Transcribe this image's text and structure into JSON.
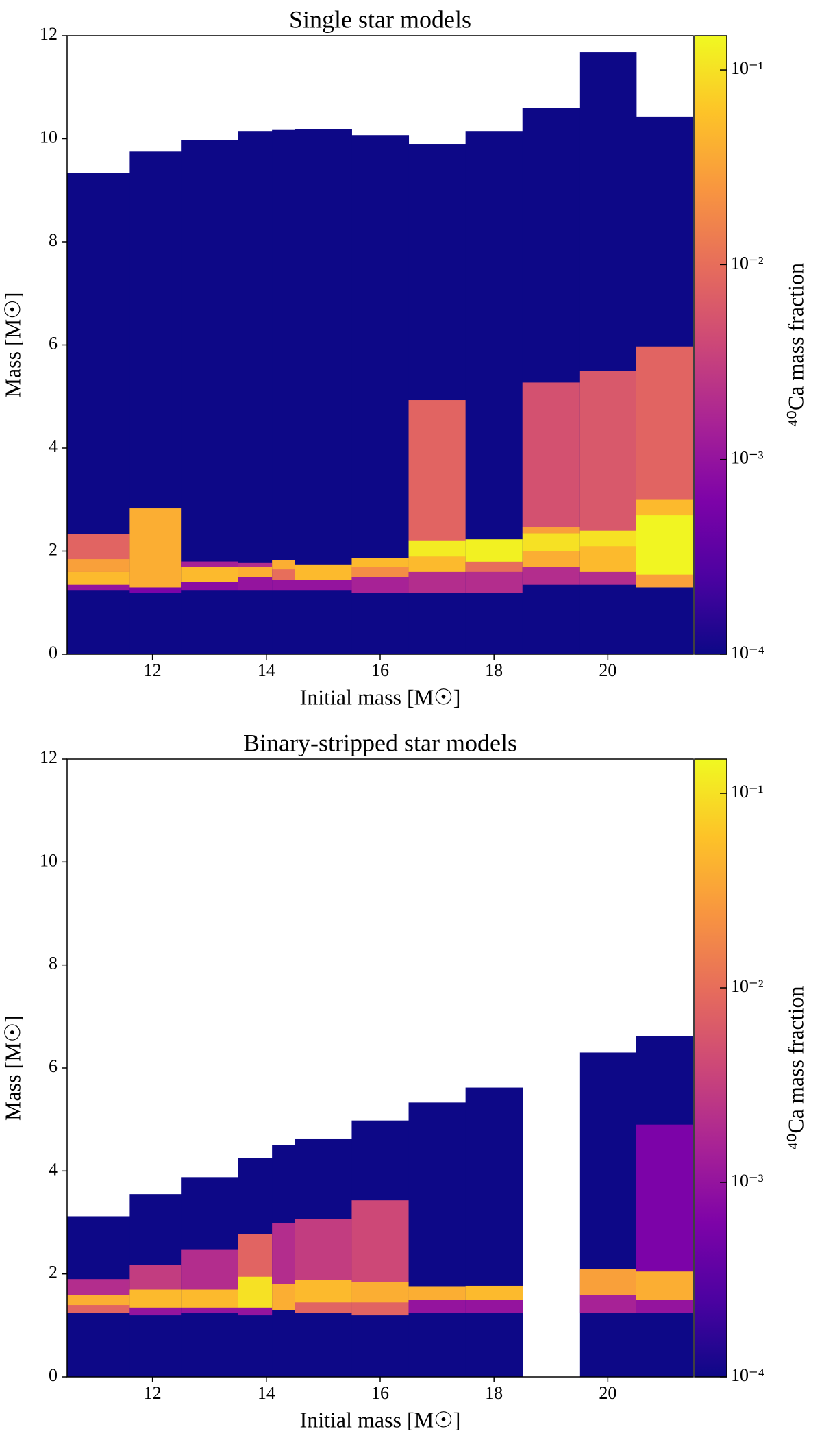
{
  "chart_data": [
    {
      "type": "heatmap",
      "title": "Single star models",
      "xlabel": "Initial mass [M☉]",
      "ylabel": "Mass [M☉]",
      "xlim": [
        10.5,
        21.5
      ],
      "xticks": [
        12,
        14,
        16,
        18,
        20
      ],
      "ylim": [
        0,
        12
      ],
      "yticks": [
        0,
        2,
        4,
        6,
        8,
        10,
        12
      ],
      "colormap": [
        "#0d0887",
        "#4c02a1",
        "#7e03a8",
        "#a92395",
        "#cc4778",
        "#e66c5c",
        "#f89540",
        "#fdc328",
        "#f0f921"
      ],
      "colorbar": {
        "label": "⁴⁰Ca mass fraction",
        "scale": "log",
        "lim": [
          0.0001,
          0.15
        ],
        "ticks": [
          {
            "value": 0.0001,
            "label": "10⁻⁴"
          },
          {
            "value": 0.001,
            "label": "10⁻³"
          },
          {
            "value": 0.01,
            "label": "10⁻²"
          },
          {
            "value": 0.1,
            "label": "10⁻¹"
          }
        ]
      },
      "columns": [
        {
          "edges": [
            10.5,
            11.6
          ],
          "top": 9.33,
          "layers": [
            [
              1.25,
              1.35,
              0.001
            ],
            [
              1.35,
              1.6,
              0.05
            ],
            [
              1.6,
              1.85,
              0.03
            ],
            [
              1.85,
              2.33,
              0.008
            ]
          ]
        },
        {
          "edges": [
            11.6,
            12.5
          ],
          "top": 9.75,
          "layers": [
            [
              1.2,
              1.3,
              0.0006
            ],
            [
              1.3,
              2.83,
              0.04
            ]
          ]
        },
        {
          "edges": [
            12.5,
            13.5
          ],
          "top": 9.98,
          "layers": [
            [
              1.25,
              1.4,
              0.0008
            ],
            [
              1.4,
              1.7,
              0.05
            ],
            [
              1.7,
              1.8,
              0.0015
            ]
          ]
        },
        {
          "edges": [
            13.5,
            14.1
          ],
          "top": 10.15,
          "layers": [
            [
              1.25,
              1.5,
              0.001
            ],
            [
              1.5,
              1.7,
              0.04
            ],
            [
              1.7,
              1.77,
              0.002
            ]
          ]
        },
        {
          "edges": [
            14.1,
            14.5
          ],
          "top": 10.17,
          "layers": [
            [
              1.25,
              1.45,
              0.001
            ],
            [
              1.45,
              1.65,
              0.01
            ],
            [
              1.65,
              1.83,
              0.04
            ]
          ]
        },
        {
          "edges": [
            14.5,
            15.5
          ],
          "top": 10.18,
          "layers": [
            [
              1.25,
              1.45,
              0.001
            ],
            [
              1.45,
              1.73,
              0.05
            ]
          ]
        },
        {
          "edges": [
            15.5,
            16.5
          ],
          "top": 10.07,
          "layers": [
            [
              1.2,
              1.5,
              0.0015
            ],
            [
              1.5,
              1.7,
              0.02
            ],
            [
              1.7,
              1.87,
              0.05
            ]
          ]
        },
        {
          "edges": [
            16.5,
            17.5
          ],
          "top": 9.9,
          "layers": [
            [
              1.2,
              1.6,
              0.002
            ],
            [
              1.6,
              1.9,
              0.05
            ],
            [
              1.9,
              2.2,
              0.12
            ],
            [
              2.2,
              4.93,
              0.008
            ]
          ]
        },
        {
          "edges": [
            17.5,
            18.5
          ],
          "top": 10.15,
          "layers": [
            [
              1.2,
              1.6,
              0.002
            ],
            [
              1.6,
              1.8,
              0.01
            ],
            [
              1.8,
              2.23,
              0.13
            ]
          ]
        },
        {
          "edges": [
            18.5,
            19.5
          ],
          "top": 10.6,
          "layers": [
            [
              1.35,
              1.7,
              0.002
            ],
            [
              1.7,
              2.0,
              0.04
            ],
            [
              2.0,
              2.35,
              0.1
            ],
            [
              2.35,
              2.47,
              0.03
            ],
            [
              2.47,
              5.27,
              0.005
            ]
          ]
        },
        {
          "edges": [
            19.5,
            20.5
          ],
          "top": 11.68,
          "layers": [
            [
              1.35,
              1.6,
              0.002
            ],
            [
              1.6,
              2.1,
              0.05
            ],
            [
              2.1,
              2.4,
              0.1
            ],
            [
              2.4,
              5.5,
              0.006
            ]
          ]
        },
        {
          "edges": [
            20.5,
            21.5
          ],
          "top": 10.42,
          "layers": [
            [
              1.3,
              1.55,
              0.03
            ],
            [
              1.55,
              2.7,
              0.14
            ],
            [
              2.7,
              3.0,
              0.05
            ],
            [
              3.0,
              5.97,
              0.008
            ]
          ]
        }
      ]
    },
    {
      "type": "heatmap",
      "title": "Binary-stripped star models",
      "xlabel": "Initial mass [M☉]",
      "ylabel": "Mass [M☉]",
      "xlim": [
        10.5,
        21.5
      ],
      "xticks": [
        12,
        14,
        16,
        18,
        20
      ],
      "ylim": [
        0,
        12
      ],
      "yticks": [
        0,
        2,
        4,
        6,
        8,
        10,
        12
      ],
      "colormap": [
        "#0d0887",
        "#4c02a1",
        "#7e03a8",
        "#a92395",
        "#cc4778",
        "#e66c5c",
        "#f89540",
        "#fdc328",
        "#f0f921"
      ],
      "colorbar": {
        "label": "⁴⁰Ca mass fraction",
        "scale": "log",
        "lim": [
          0.0001,
          0.15
        ],
        "ticks": [
          {
            "value": 0.0001,
            "label": "10⁻⁴"
          },
          {
            "value": 0.001,
            "label": "10⁻³"
          },
          {
            "value": 0.01,
            "label": "10⁻²"
          },
          {
            "value": 0.1,
            "label": "10⁻¹"
          }
        ]
      },
      "columns": [
        {
          "edges": [
            10.5,
            11.6
          ],
          "top": 3.12,
          "layers": [
            [
              1.25,
              1.4,
              0.008
            ],
            [
              1.4,
              1.6,
              0.04
            ],
            [
              1.6,
              1.9,
              0.002
            ]
          ]
        },
        {
          "edges": [
            11.6,
            12.5
          ],
          "top": 3.55,
          "layers": [
            [
              1.2,
              1.35,
              0.001
            ],
            [
              1.35,
              1.7,
              0.05
            ],
            [
              1.7,
              2.17,
              0.003
            ]
          ]
        },
        {
          "edges": [
            12.5,
            13.5
          ],
          "top": 3.88,
          "layers": [
            [
              1.25,
              1.35,
              0.001
            ],
            [
              1.35,
              1.7,
              0.05
            ],
            [
              1.7,
              2.48,
              0.002
            ]
          ]
        },
        {
          "edges": [
            13.5,
            14.1
          ],
          "top": 4.25,
          "layers": [
            [
              1.2,
              1.35,
              0.001
            ],
            [
              1.35,
              1.95,
              0.1
            ],
            [
              1.95,
              2.78,
              0.008
            ]
          ]
        },
        {
          "edges": [
            14.1,
            14.5
          ],
          "top": 4.5,
          "layers": [
            [
              1.3,
              1.8,
              0.04
            ],
            [
              1.8,
              2.98,
              0.002
            ]
          ]
        },
        {
          "edges": [
            14.5,
            15.5
          ],
          "top": 4.63,
          "layers": [
            [
              1.25,
              1.45,
              0.008
            ],
            [
              1.45,
              1.88,
              0.05
            ],
            [
              1.88,
              3.07,
              0.003
            ]
          ]
        },
        {
          "edges": [
            15.5,
            16.5
          ],
          "top": 4.98,
          "layers": [
            [
              1.2,
              1.45,
              0.008
            ],
            [
              1.45,
              1.85,
              0.04
            ],
            [
              1.85,
              3.43,
              0.004
            ]
          ]
        },
        {
          "edges": [
            16.5,
            17.5
          ],
          "top": 5.33,
          "layers": [
            [
              1.25,
              1.5,
              0.001
            ],
            [
              1.5,
              1.75,
              0.04
            ]
          ]
        },
        {
          "edges": [
            17.5,
            18.5
          ],
          "top": 5.62,
          "layers": [
            [
              1.25,
              1.5,
              0.001
            ],
            [
              1.5,
              1.77,
              0.05
            ]
          ]
        },
        {
          "edges": [
            19.5,
            20.5
          ],
          "top": 6.3,
          "layers": [
            [
              1.25,
              1.6,
              0.0015
            ],
            [
              1.6,
              2.1,
              0.03
            ]
          ]
        },
        {
          "edges": [
            20.5,
            21.5
          ],
          "top": 6.62,
          "layers": [
            [
              1.25,
              1.5,
              0.001
            ],
            [
              1.5,
              2.05,
              0.04
            ],
            [
              2.05,
              4.9,
              0.0006
            ]
          ]
        }
      ]
    }
  ]
}
